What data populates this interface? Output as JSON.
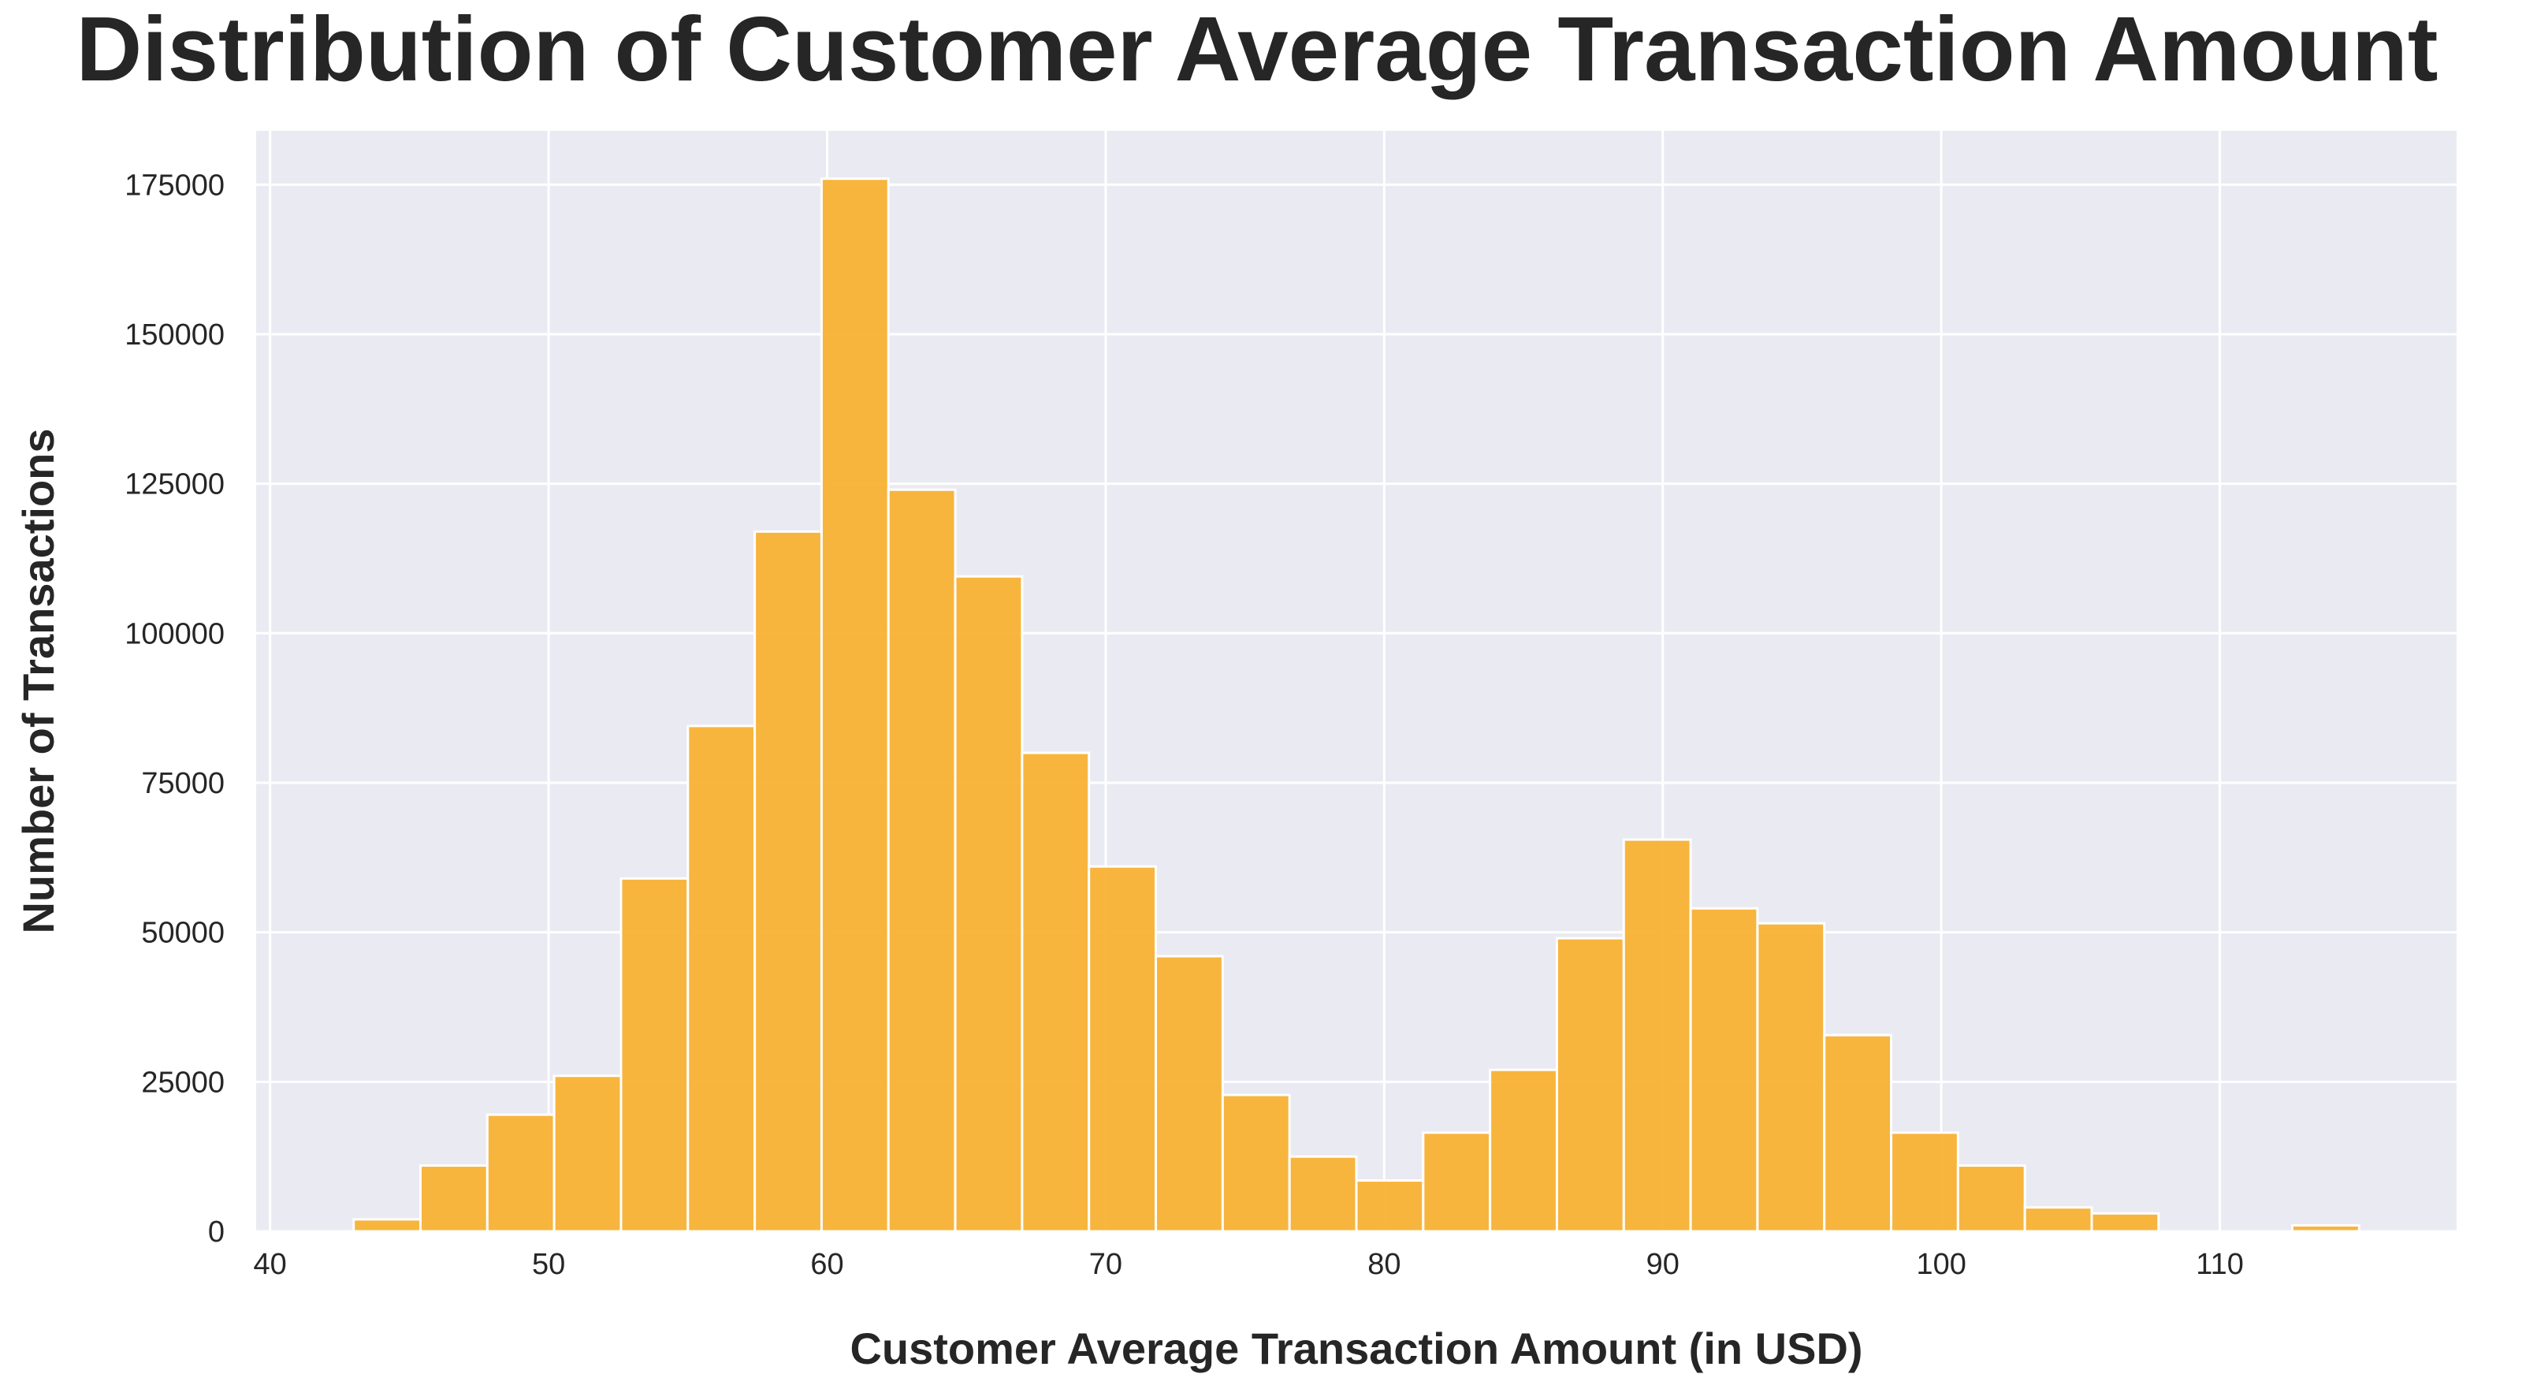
{
  "chart_data": {
    "type": "bar",
    "title": "Distribution of Customer Average Transaction Amount",
    "xlabel": "Customer Average Transaction Amount (in USD)",
    "ylabel": "Number of Transactions",
    "xlim": [
      39.5,
      118.5
    ],
    "ylim": [
      0,
      184000
    ],
    "xticks": [
      40,
      50,
      60,
      70,
      80,
      90,
      100,
      110
    ],
    "yticks": [
      0,
      25000,
      50000,
      75000,
      100000,
      125000,
      150000,
      175000
    ],
    "grid": true,
    "bin_edges": [
      43.0,
      45.4,
      47.8,
      50.2,
      52.6,
      55.0,
      57.4,
      59.8,
      62.2,
      64.6,
      67.0,
      69.4,
      71.8,
      74.2,
      76.6,
      79.0,
      81.4,
      83.8,
      86.2,
      88.6,
      91.0,
      93.4,
      95.8,
      98.2,
      100.6,
      103.0,
      105.4,
      107.8,
      110.2,
      112.6,
      115.0
    ],
    "values": [
      2000,
      11000,
      19500,
      26000,
      59000,
      84500,
      117000,
      176000,
      124000,
      109500,
      80000,
      61000,
      46000,
      22800,
      12500,
      8500,
      16500,
      27000,
      49000,
      65500,
      54000,
      51500,
      32800,
      16500,
      11000,
      4000,
      3000,
      0,
      0,
      1000
    ],
    "bar_color": "#f7b030",
    "bar_edge_color": "#ffffff",
    "background_color": "#eaeaf2",
    "grid_color": "#ffffff"
  }
}
